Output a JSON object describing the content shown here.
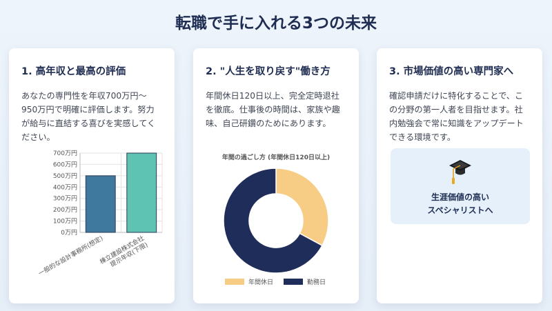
{
  "page": {
    "title": "転職で手に入れる3つの未来"
  },
  "cards": [
    {
      "title": "1. 高年収と最高の評価",
      "text": "あなたの専門性を年収700万円〜950万円で明確に評価します。努力が給与に直結する喜びを実感してください。"
    },
    {
      "title": "2. \"人生を取り戻す\"働き方",
      "text": "年間休日120日以上、完全定時退社を徹底。仕事後の時間は、家族や趣味、自己研鑽のためにあります。"
    },
    {
      "title": "3. 市場価値の高い専門家へ",
      "text": "確認申請だけに特化することで、この分野の第一人者を目指せます。社内勉強会で常に知識をアップデートできる環境です。",
      "note_line1": "生涯価値の高い",
      "note_line2": "スペシャリストへ",
      "note_icon": "graduation-cap-icon"
    }
  ],
  "chart_data": [
    {
      "type": "bar",
      "categories": [
        "一般的な設計事務所(想定)",
        "棟立建設株式会社 提示年収(下限)"
      ],
      "category_lines": [
        [
          "一般的な設計事務所(想定)"
        ],
        [
          "棟立建設株式会社",
          "提示年収(下限)"
        ]
      ],
      "values": [
        500,
        700
      ],
      "colors": [
        "#3f7a9e",
        "#5fc3b3"
      ],
      "ylim": [
        0,
        700
      ],
      "ytick_step": 100,
      "ytick_labels": [
        "0万円",
        "100万円",
        "200万円",
        "300万円",
        "400万円",
        "500万円",
        "600万円",
        "700万円"
      ],
      "grid": true,
      "title": "",
      "xlabel": "",
      "ylabel": ""
    },
    {
      "type": "pie",
      "title": "年間の過ごし方 (年間休日120日以上)",
      "categories": [
        "年間休日",
        "勤務日"
      ],
      "values": [
        120,
        245
      ],
      "colors": [
        "#f7cd86",
        "#1f2d5a"
      ],
      "legend": "bottom"
    }
  ]
}
